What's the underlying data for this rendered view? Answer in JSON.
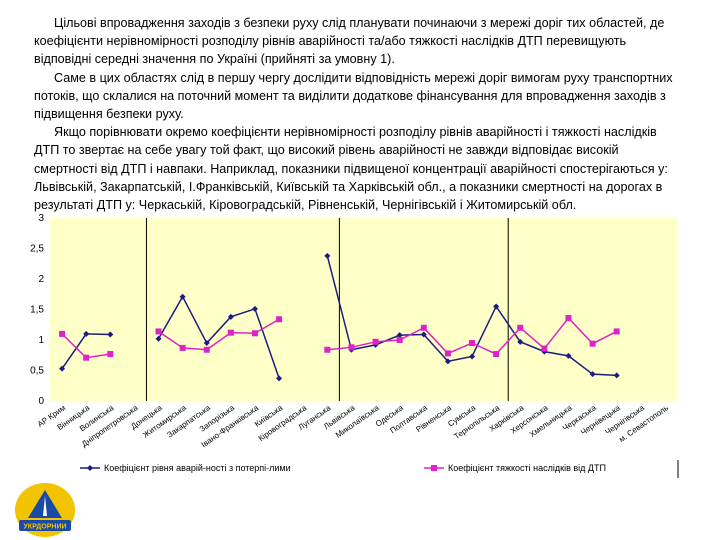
{
  "text": {
    "p1": "Цільові впровадження заходів з безпеки руху слід планувати починаючи з мережі доріг тих областей, де коефіцієнти нерівномірності розподілу рівнів аварійності та/або тяжкості наслідків ДТП перевищують відповідні середні значення по Україні (прийняті за умовну 1).",
    "p2": "Саме в цих областях слід в першу чергу дослідити відповідність мережі доріг вимогам руху транспортних потоків, що склалися на поточний момент та виділити додаткове фінансування для впровадження заходів з підвищення безпеки руху.",
    "p3": "Якщо порівнювати окремо коефіцієнти нерівномірності розподілу рівнів аварійності і тяжкості наслідків ДТП то звертає на себе увагу той факт, що високий рівень аварійності не завжди відповідає високій смертності від ДТП і навпаки. Наприклад, показники підвищеної концентрації аварійності спостерігаються у: Львівській, Закарпатській, І.Франківській, Київській та Харківській обл., а показники смертності на дорогах в результаті ДТП у: Черкаській, Кіровоградській, Рівненській, Чернігівській і Житомирській обл."
  },
  "chart_data": {
    "type": "line",
    "categories": [
      "АР Крим",
      "Вінницька",
      "Волинська",
      "Дніпропетровська",
      "Донецька",
      "Житомирська",
      "Закарпатська",
      "Запорізька",
      "Івано-Франківська",
      "Київська",
      "Кіровоградська",
      "Луганська",
      "Львівська",
      "Миколаївська",
      "Одеська",
      "Полтавська",
      "Рівненська",
      "Сумська",
      "Тернопільська",
      "Харківська",
      "Херсонська",
      "Хмельницька",
      "Черкаська",
      "Чернівецька",
      "Чернігівська",
      "м. Севастополь"
    ],
    "ylim": [
      0,
      3
    ],
    "yticks": [
      "0",
      "0,5",
      "1",
      "1,5",
      "2",
      "2,5",
      "3"
    ],
    "separators_after_index": [
      3,
      11,
      18
    ],
    "series": [
      {
        "name": "Коефіцієнт рівня аварій-ності з потерпі-лими",
        "color": "#1c1c80",
        "values": [
          0.53,
          1.1,
          1.09,
          null,
          1.02,
          1.71,
          0.95,
          1.38,
          1.51,
          0.37,
          null,
          2.38,
          0.84,
          0.92,
          1.08,
          1.09,
          0.65,
          0.73,
          1.55,
          0.97,
          0.81,
          0.74,
          0.44,
          0.42,
          null,
          null
        ]
      },
      {
        "name": "Коефіцієнт тяжкості наслідків від ДТП",
        "color": "#e020c8",
        "values": [
          1.1,
          0.71,
          0.77,
          null,
          1.14,
          0.87,
          0.84,
          1.12,
          1.11,
          1.34,
          null,
          0.84,
          0.88,
          0.97,
          1.0,
          1.2,
          0.78,
          0.95,
          0.77,
          1.2,
          0.86,
          1.36,
          0.94,
          1.14,
          null,
          null
        ]
      }
    ]
  },
  "logo": {
    "text": "УКРДОРНИИ",
    "icon": "road-institute-logo"
  }
}
